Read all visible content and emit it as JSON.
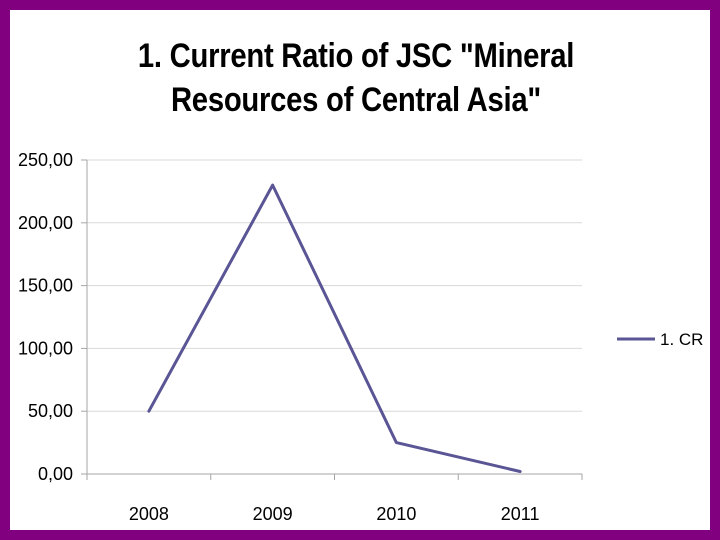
{
  "colors": {
    "frame": "#800080",
    "series": "#5a5594",
    "grid": "#d9d9d9",
    "axis": "#a6a6a6"
  },
  "chart_data": {
    "type": "line",
    "title_lines": [
      "1. Current Ratio of JSC \"Mineral",
      "Resources of Central Asia\""
    ],
    "x": [
      "2008",
      "2009",
      "2010",
      "2011"
    ],
    "series": [
      {
        "name": "1. CR",
        "values": [
          50,
          230,
          25,
          2
        ]
      }
    ],
    "ylim": [
      0,
      250
    ],
    "yticks": [
      0,
      50,
      100,
      150,
      200,
      250
    ],
    "ytick_labels": [
      "0,00",
      "50,00",
      "100,00",
      "150,00",
      "200,00",
      "250,00"
    ],
    "grid": true,
    "legend_position": "right"
  }
}
